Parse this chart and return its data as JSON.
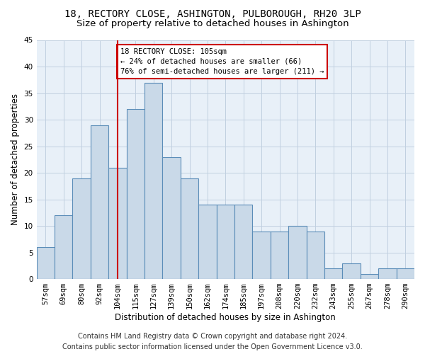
{
  "title": "18, RECTORY CLOSE, ASHINGTON, PULBOROUGH, RH20 3LP",
  "subtitle": "Size of property relative to detached houses in Ashington",
  "xlabel": "Distribution of detached houses by size in Ashington",
  "ylabel": "Number of detached properties",
  "categories": [
    "57sqm",
    "69sqm",
    "80sqm",
    "92sqm",
    "104sqm",
    "115sqm",
    "127sqm",
    "139sqm",
    "150sqm",
    "162sqm",
    "174sqm",
    "185sqm",
    "197sqm",
    "208sqm",
    "220sqm",
    "232sqm",
    "243sqm",
    "255sqm",
    "267sqm",
    "278sqm",
    "290sqm"
  ],
  "values": [
    6,
    12,
    19,
    29,
    21,
    32,
    37,
    23,
    19,
    14,
    14,
    14,
    9,
    9,
    10,
    9,
    2,
    3,
    1,
    2,
    2
  ],
  "bar_color": "#c9d9e8",
  "bar_edge_color": "#5b8db8",
  "vline_color": "#cc0000",
  "annotation_text_line1": "18 RECTORY CLOSE: 105sqm",
  "annotation_text_line2": "← 24% of detached houses are smaller (66)",
  "annotation_text_line3": "76% of semi-detached houses are larger (211) →",
  "annotation_box_color": "#ffffff",
  "annotation_box_edge_color": "#cc0000",
  "ylim": [
    0,
    45
  ],
  "yticks": [
    0,
    5,
    10,
    15,
    20,
    25,
    30,
    35,
    40,
    45
  ],
  "grid_color": "#c0cfe0",
  "bg_color": "#e8f0f8",
  "footer_line1": "Contains HM Land Registry data © Crown copyright and database right 2024.",
  "footer_line2": "Contains public sector information licensed under the Open Government Licence v3.0.",
  "title_fontsize": 10,
  "subtitle_fontsize": 9.5,
  "xlabel_fontsize": 8.5,
  "ylabel_fontsize": 8.5,
  "tick_fontsize": 7.5,
  "footer_fontsize": 7,
  "ann_fontsize": 7.5
}
